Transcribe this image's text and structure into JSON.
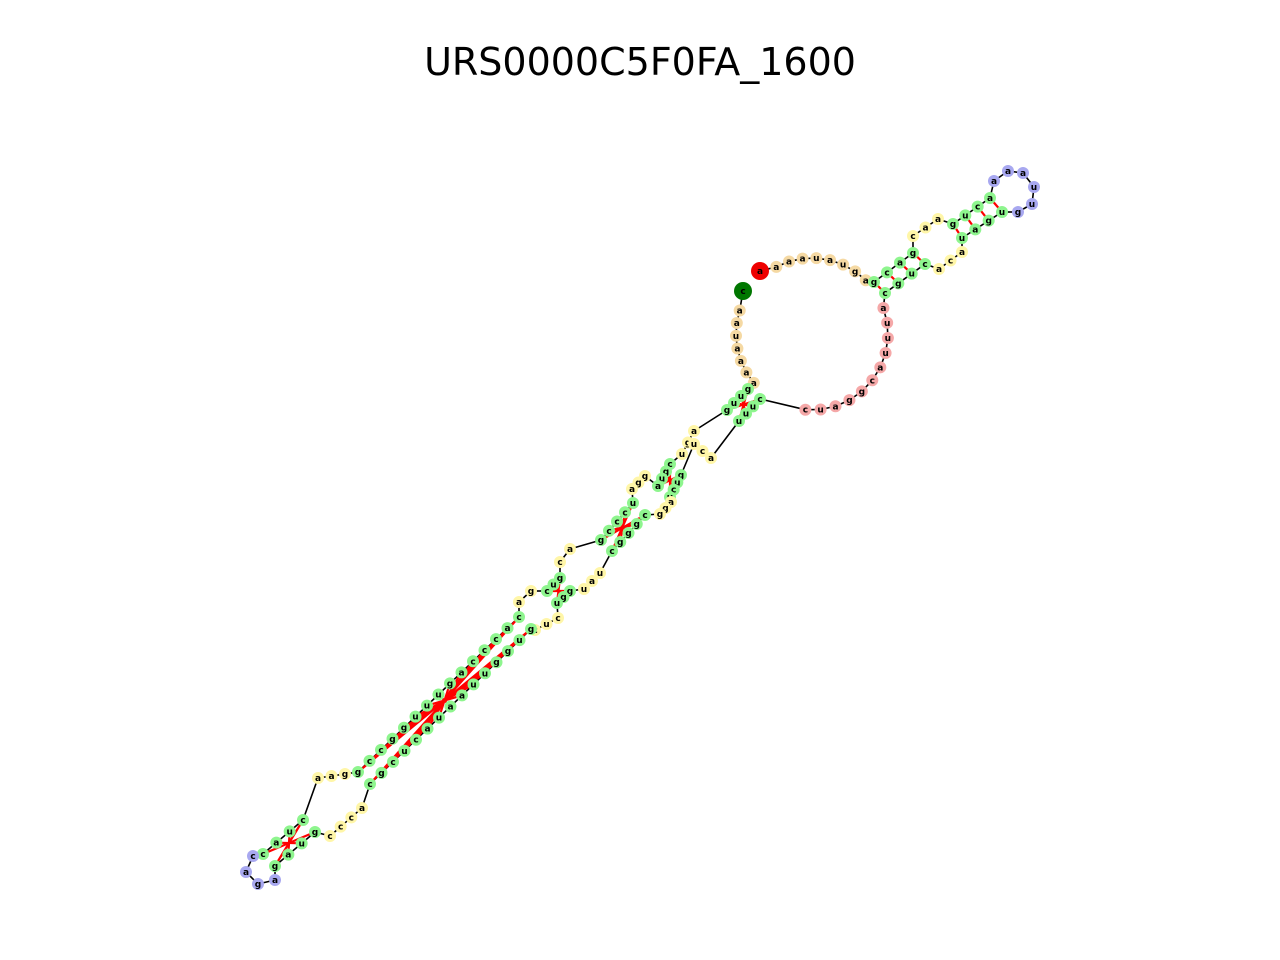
{
  "title": "URS0000C5F0FA_1600",
  "colors": {
    "stem": "#8ef58e",
    "interior_loop": "#fff6a8",
    "hairpin_loop": "#a8a8f0",
    "multiloop": "#f5d9a3",
    "exterior": "#f5a8a8",
    "five_prime_end": "#ee0000",
    "three_prime_end": "#007700",
    "pair_bond": "#ff0000",
    "backbone": "#000000"
  },
  "upper_hairpin": {
    "stem1_left": [
      "g",
      "c",
      "a",
      "g"
    ],
    "interior_left": [
      "c",
      "a",
      "a"
    ],
    "stem2_left": [
      "g",
      "u",
      "c",
      "a"
    ],
    "hairpin": [
      "a",
      "a",
      "a",
      "u",
      "u",
      "g"
    ],
    "stem2_right": [
      "u",
      "g",
      "a",
      "u"
    ],
    "interior_right": [
      "a",
      "c",
      "a"
    ],
    "stem1_right": [
      "c",
      "u",
      "g",
      "c"
    ]
  },
  "main_loop": {
    "five_prime_end": "a",
    "multiloop_arc": [
      "a",
      "a",
      "a",
      "u",
      "a",
      "u",
      "g",
      "a"
    ],
    "exterior_arc": [
      "a",
      "u",
      "u",
      "u",
      "a",
      "c",
      "g",
      "g",
      "a",
      "u",
      "c"
    ],
    "three_prime_end": "c",
    "tail_arc": [
      "a",
      "a",
      "u",
      "a",
      "a",
      "a",
      "a"
    ]
  },
  "long_helix": {
    "outer_stem_outer": [
      "g",
      "u",
      "u",
      "g"
    ],
    "outer_stem_inner": [
      "c",
      "u",
      "u",
      "u"
    ],
    "bulge_a": [
      "a",
      "g",
      "u"
    ],
    "bulge_b": [
      "a",
      "c",
      "u"
    ],
    "mid_stem_a": [
      "c",
      "g",
      "u",
      "a"
    ],
    "mid_stem_b": [
      "g",
      "u",
      "c",
      "u"
    ],
    "il_a": [
      "g",
      "g",
      "a"
    ],
    "il_b": [
      "a",
      "g",
      "g"
    ],
    "stem_c_a": [
      "u",
      "c",
      "c",
      "c",
      "g"
    ],
    "stem_c_b": [
      "c",
      "g",
      "g",
      "g",
      "c"
    ],
    "il2_a": [
      "a",
      "c"
    ],
    "il2_b": [
      "u",
      "a",
      "u"
    ],
    "stem_d_a": [
      "g",
      "u",
      "c"
    ],
    "stem_d_b": [
      "g",
      "g",
      "u"
    ],
    "il3_a": [
      "g",
      "a"
    ],
    "il3_b": [
      "c",
      "u",
      "c"
    ],
    "stem_e_a": [
      "c",
      "a",
      "c",
      "c",
      "c",
      "a",
      "g",
      "u",
      "u",
      "u",
      "g",
      "g",
      "c",
      "c",
      "g"
    ],
    "stem_e_b": [
      "g",
      "u",
      "g",
      "g",
      "u",
      "u",
      "a",
      "a",
      "u",
      "a",
      "c",
      "u",
      "c",
      "g",
      "c"
    ],
    "bottom_il_a": [
      "g",
      "a",
      "a"
    ],
    "bottom_il_b": [
      "a",
      "c",
      "c",
      "c"
    ],
    "bottom_stem_a": [
      "c",
      "u",
      "a",
      "c"
    ],
    "bottom_stem_b": [
      "g",
      "u",
      "a",
      "g"
    ],
    "bottom_hairpin": [
      "c",
      "a",
      "g",
      "a"
    ]
  }
}
